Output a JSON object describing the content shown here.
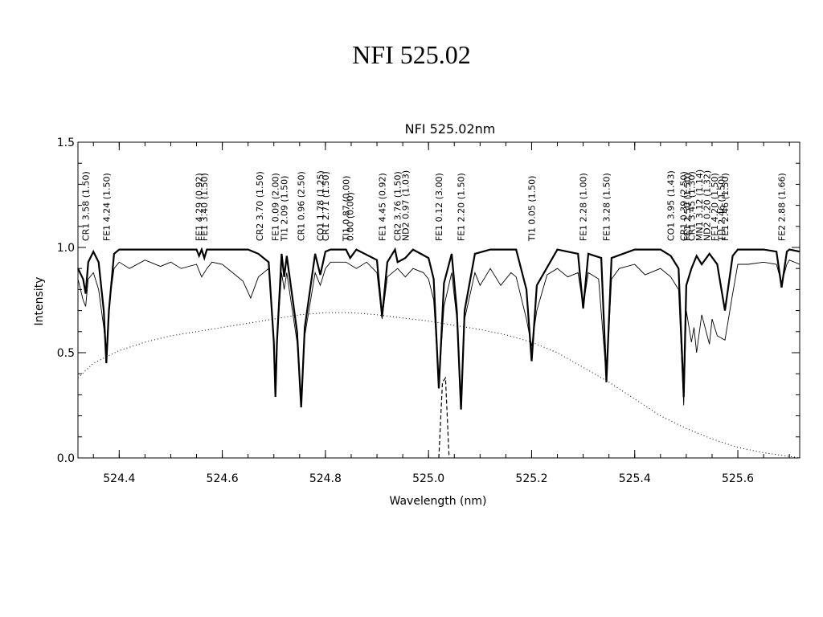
{
  "slide": {
    "title": "NFI 525.02"
  },
  "chart_data": {
    "type": "line",
    "title": "NFI 525.02nm",
    "xlabel": "Wavelength (nm)",
    "ylabel": "Intensity",
    "xlim": [
      524.32,
      525.72
    ],
    "ylim": [
      0.0,
      1.5
    ],
    "x_ticks": [
      "524.4",
      "524.6",
      "524.8",
      "525.0",
      "525.2",
      "525.4",
      "525.6"
    ],
    "y_ticks": [
      "0.0",
      "0.5",
      "1.0",
      "1.5"
    ],
    "lines": [
      {
        "x": 524.335,
        "label": "CR1 3.58 (1.50)"
      },
      {
        "x": 524.375,
        "label": "FE1 4.24 (1.50)"
      },
      {
        "x": 524.555,
        "label": "FE1 4.29 (0.92)"
      },
      {
        "x": 524.565,
        "label": "FE1 3.40 (1.50)"
      },
      {
        "x": 524.672,
        "label": "CR2 3.70 (1.50)"
      },
      {
        "x": 524.703,
        "label": "FE1 0.09 (2.00)"
      },
      {
        "x": 524.72,
        "label": "TI1 2.09 (1.50)"
      },
      {
        "x": 524.753,
        "label": "CR1 0.96 (2.50)"
      },
      {
        "x": 524.79,
        "label": "CO1 1.78 (1.25)"
      },
      {
        "x": 524.8,
        "label": "CR1 2.71 (1.50)"
      },
      {
        "x": 524.84,
        "label": "TI1 0.87 (0.00)"
      },
      {
        "x": 524.848,
        "label": "0.00 (0.00)"
      },
      {
        "x": 524.91,
        "label": "FE1 4.45 (0.92)"
      },
      {
        "x": 524.94,
        "label": "CR2 3.76 (1.50)"
      },
      {
        "x": 524.955,
        "label": "ND2 0.97 (1.03)"
      },
      {
        "x": 525.02,
        "label": "FE1 0.12 (3.00)"
      },
      {
        "x": 525.063,
        "label": "FE1 2.20 (1.50)"
      },
      {
        "x": 525.2,
        "label": "TI1 0.05 (1.50)"
      },
      {
        "x": 525.3,
        "label": "FE1 2.28 (1.00)"
      },
      {
        "x": 525.345,
        "label": "FE1 3.28 (1.50)"
      },
      {
        "x": 525.47,
        "label": "CO1 3.95 (1.43)"
      },
      {
        "x": 525.495,
        "label": "CR1 0.39 (2.50)"
      },
      {
        "x": 525.502,
        "label": "FE1 2.50 (1.50)"
      },
      {
        "x": 525.51,
        "label": "CR1 3.45 (1.30)"
      },
      {
        "x": 525.525,
        "label": "MN1 3.12 (1.14)"
      },
      {
        "x": 525.54,
        "label": "ND2 0.20 (1.32)"
      },
      {
        "x": 525.555,
        "label": "FE1 4.20 (1.50)"
      },
      {
        "x": 525.568,
        "label": "TI1 2.46 (1.50)"
      },
      {
        "x": 525.575,
        "label": "FE1 2.46 (1.50)"
      },
      {
        "x": 525.685,
        "label": "FE2 2.88 (1.66)"
      }
    ],
    "filter_profile": {
      "style": "dotted",
      "x": [
        524.32,
        524.35,
        524.4,
        524.45,
        524.5,
        524.55,
        524.6,
        524.65,
        524.7,
        524.75,
        524.8,
        524.85,
        524.9,
        524.95,
        525.0,
        525.05,
        525.1,
        525.15,
        525.2,
        525.25,
        525.3,
        525.35,
        525.4,
        525.45,
        525.5,
        525.55,
        525.6,
        525.65,
        525.72
      ],
      "y": [
        0.38,
        0.45,
        0.51,
        0.55,
        0.58,
        0.6,
        0.62,
        0.64,
        0.66,
        0.68,
        0.69,
        0.69,
        0.68,
        0.665,
        0.65,
        0.63,
        0.61,
        0.585,
        0.55,
        0.5,
        0.43,
        0.36,
        0.28,
        0.2,
        0.14,
        0.09,
        0.05,
        0.025,
        0.0
      ]
    },
    "line_core_marker": {
      "style": "dashed",
      "x": [
        525.02,
        525.027,
        525.033,
        525.04
      ],
      "y": [
        0.0,
        0.36,
        0.38,
        0.0
      ]
    },
    "spectrum_thick": {
      "x": [
        524.32,
        524.33,
        524.335,
        524.34,
        524.35,
        524.36,
        524.37,
        524.375,
        524.38,
        524.39,
        524.4,
        524.45,
        524.5,
        524.55,
        524.555,
        524.56,
        524.565,
        524.57,
        524.6,
        524.65,
        524.67,
        524.69,
        524.7,
        524.703,
        524.706,
        524.715,
        524.72,
        524.725,
        524.745,
        524.753,
        524.76,
        524.78,
        524.79,
        524.8,
        524.81,
        524.84,
        524.848,
        524.86,
        524.9,
        524.91,
        524.92,
        524.935,
        524.94,
        524.955,
        524.97,
        525.0,
        525.01,
        525.02,
        525.03,
        525.045,
        525.055,
        525.063,
        525.07,
        525.09,
        525.12,
        525.17,
        525.19,
        525.2,
        525.21,
        525.25,
        525.29,
        525.3,
        525.31,
        525.335,
        525.345,
        525.355,
        525.4,
        525.45,
        525.47,
        525.485,
        525.495,
        525.5,
        525.51,
        525.52,
        525.53,
        525.545,
        525.56,
        525.575,
        525.59,
        525.6,
        525.65,
        525.675,
        525.685,
        525.695,
        525.7,
        525.72
      ],
      "y": [
        0.9,
        0.85,
        0.78,
        0.93,
        0.98,
        0.93,
        0.7,
        0.45,
        0.7,
        0.97,
        0.99,
        0.99,
        0.99,
        0.99,
        0.96,
        0.99,
        0.95,
        0.99,
        0.99,
        0.99,
        0.97,
        0.93,
        0.55,
        0.29,
        0.55,
        0.97,
        0.86,
        0.96,
        0.6,
        0.24,
        0.62,
        0.97,
        0.87,
        0.98,
        0.99,
        0.99,
        0.95,
        0.99,
        0.94,
        0.67,
        0.93,
        0.99,
        0.93,
        0.95,
        0.99,
        0.95,
        0.85,
        0.33,
        0.83,
        0.97,
        0.7,
        0.23,
        0.7,
        0.97,
        0.99,
        0.99,
        0.8,
        0.46,
        0.82,
        0.99,
        0.97,
        0.71,
        0.97,
        0.95,
        0.36,
        0.95,
        0.99,
        0.99,
        0.96,
        0.9,
        0.29,
        0.82,
        0.9,
        0.96,
        0.92,
        0.97,
        0.92,
        0.7,
        0.96,
        0.99,
        0.99,
        0.98,
        0.81,
        0.98,
        0.99,
        0.98
      ]
    },
    "spectrum_thin": {
      "x": [
        524.32,
        524.33,
        524.335,
        524.34,
        524.35,
        524.36,
        524.37,
        524.375,
        524.38,
        524.39,
        524.4,
        524.42,
        524.45,
        524.48,
        524.5,
        524.52,
        524.55,
        524.56,
        524.57,
        524.58,
        524.6,
        524.62,
        524.64,
        524.655,
        524.67,
        524.69,
        524.7,
        524.703,
        524.706,
        524.715,
        524.72,
        524.725,
        524.745,
        524.753,
        524.76,
        524.78,
        524.79,
        524.8,
        524.81,
        524.84,
        524.86,
        524.88,
        524.9,
        524.91,
        524.92,
        524.94,
        524.955,
        524.97,
        524.99,
        525.0,
        525.01,
        525.02,
        525.03,
        525.045,
        525.055,
        525.063,
        525.07,
        525.09,
        525.1,
        525.12,
        525.14,
        525.16,
        525.17,
        525.19,
        525.2,
        525.21,
        525.23,
        525.25,
        525.27,
        525.29,
        525.3,
        525.31,
        525.33,
        525.345,
        525.355,
        525.37,
        525.4,
        525.42,
        525.45,
        525.47,
        525.485,
        525.495,
        525.5,
        525.51,
        525.515,
        525.52,
        525.53,
        525.545,
        525.55,
        525.56,
        525.575,
        525.59,
        525.6,
        525.62,
        525.65,
        525.675,
        525.685,
        525.695,
        525.7,
        525.72
      ],
      "y": [
        0.85,
        0.75,
        0.72,
        0.85,
        0.88,
        0.8,
        0.62,
        0.5,
        0.72,
        0.9,
        0.93,
        0.9,
        0.94,
        0.91,
        0.93,
        0.9,
        0.92,
        0.86,
        0.9,
        0.93,
        0.92,
        0.88,
        0.84,
        0.76,
        0.86,
        0.9,
        0.55,
        0.32,
        0.55,
        0.88,
        0.8,
        0.88,
        0.55,
        0.26,
        0.58,
        0.88,
        0.82,
        0.9,
        0.93,
        0.93,
        0.9,
        0.93,
        0.88,
        0.66,
        0.86,
        0.9,
        0.86,
        0.9,
        0.88,
        0.85,
        0.75,
        0.35,
        0.72,
        0.88,
        0.66,
        0.26,
        0.66,
        0.88,
        0.82,
        0.9,
        0.82,
        0.88,
        0.86,
        0.66,
        0.53,
        0.7,
        0.87,
        0.9,
        0.86,
        0.88,
        0.72,
        0.88,
        0.85,
        0.38,
        0.85,
        0.9,
        0.92,
        0.87,
        0.9,
        0.86,
        0.8,
        0.25,
        0.7,
        0.55,
        0.62,
        0.5,
        0.68,
        0.54,
        0.66,
        0.58,
        0.56,
        0.78,
        0.92,
        0.92,
        0.93,
        0.92,
        0.83,
        0.92,
        0.94,
        0.92
      ]
    }
  }
}
